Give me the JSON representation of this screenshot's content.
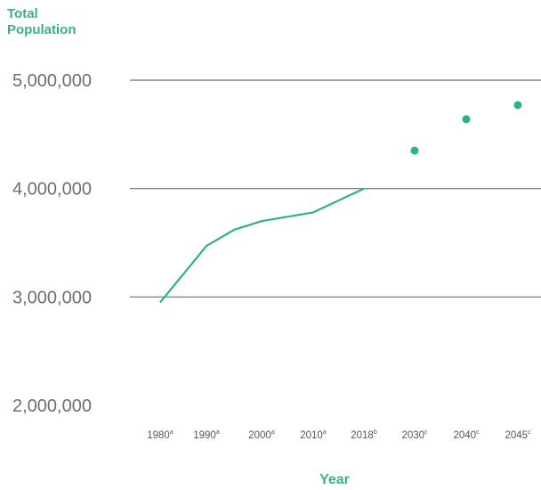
{
  "chart_data": {
    "type": "line",
    "ylabel_lines": [
      "Total",
      "Population"
    ],
    "xlabel": "Year",
    "ylim": [
      2000000,
      5000000
    ],
    "grid": true,
    "y_ticks": [
      {
        "value": 5000000,
        "label": "5,000,000"
      },
      {
        "value": 4000000,
        "label": "4,000,000"
      },
      {
        "value": 3000000,
        "label": "3,000,000"
      },
      {
        "value": 2000000,
        "label": "2,000,000"
      }
    ],
    "categories": [
      {
        "label": "1980",
        "note": "a"
      },
      {
        "label": "1990",
        "note": "a"
      },
      {
        "label": "2000",
        "note": "a"
      },
      {
        "label": "2010",
        "note": "a"
      },
      {
        "label": "2018",
        "note": "b"
      },
      {
        "label": "2030",
        "note": "c"
      },
      {
        "label": "2040",
        "note": "c"
      },
      {
        "label": "2045",
        "note": "c"
      }
    ],
    "series": [
      {
        "style": "line",
        "color": "#2bb383",
        "points": [
          {
            "x": 1980,
            "y": 2950000
          },
          {
            "x": 1990,
            "y": 3470000
          },
          {
            "x": 1995,
            "y": 3620000
          },
          {
            "x": 2000,
            "y": 3700000
          },
          {
            "x": 2010,
            "y": 3780000
          },
          {
            "x": 2018,
            "y": 4000000
          }
        ]
      },
      {
        "style": "markers",
        "color": "#2bb383",
        "points": [
          {
            "x": 2030,
            "y": 4350000
          },
          {
            "x": 2040,
            "y": 4640000
          },
          {
            "x": 2045,
            "y": 4770000
          }
        ]
      }
    ]
  }
}
